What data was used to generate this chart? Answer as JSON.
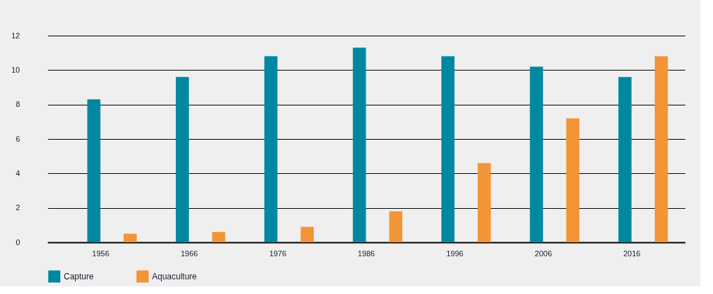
{
  "chart_data": {
    "type": "bar",
    "categories": [
      "1956",
      "1966",
      "1976",
      "1986",
      "1996",
      "2006",
      "2016"
    ],
    "series": [
      {
        "name": "Capture",
        "color": "#0088a2",
        "values": [
          8.3,
          9.6,
          10.8,
          11.3,
          10.8,
          10.2,
          9.6
        ]
      },
      {
        "name": "Aquaculture",
        "color": "#f39436",
        "values": [
          0.5,
          0.6,
          0.9,
          1.8,
          4.6,
          7.2,
          10.8
        ]
      }
    ],
    "ylim": [
      0,
      12
    ],
    "yticks": [
      0,
      2,
      4,
      6,
      8,
      10,
      12
    ],
    "grid": "y",
    "legend": "bottom left"
  }
}
